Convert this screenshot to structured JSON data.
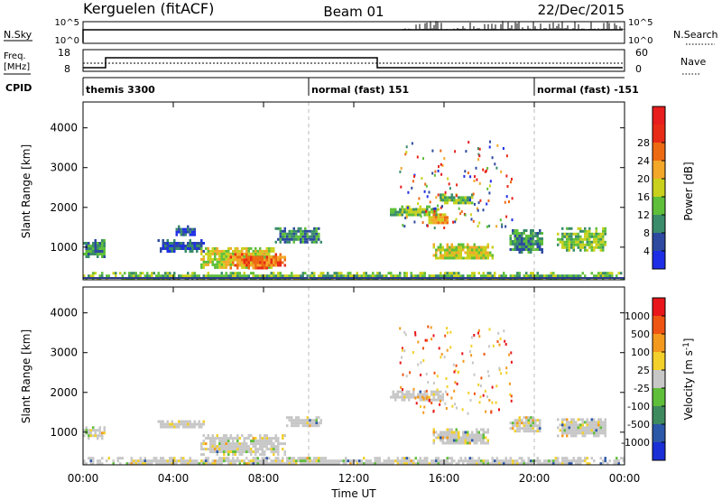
{
  "header": {
    "station": "Kerguelen (fitACF)",
    "beam": "Beam 01",
    "date": "22/Dec/2015"
  },
  "nsky_panel": {
    "left_label": "N.Sky",
    "ticks_left": [
      "10^5",
      "10^0"
    ],
    "ticks_right": [
      "10^5",
      "10^0"
    ],
    "right_label": "N.Search"
  },
  "freq_panel": {
    "left_label_1": "Freq.",
    "left_label_2": "[MHz]",
    "ticks_left": [
      "18",
      "8"
    ],
    "ticks_right": [
      "60",
      "0"
    ],
    "right_label": "Nave"
  },
  "cpid": {
    "label": "CPID",
    "segments": [
      {
        "name": "themis 3300",
        "start_hour": 0,
        "end_hour": 10
      },
      {
        "name": "normal (fast) 151",
        "start_hour": 10,
        "end_hour": 20
      },
      {
        "name": "normal (fast) -151",
        "start_hour": 20,
        "end_hour": 24
      }
    ]
  },
  "x_axis": {
    "label": "Time UT",
    "ticks": [
      "00:00",
      "04:00",
      "08:00",
      "12:00",
      "16:00",
      "20:00",
      "00:00"
    ]
  },
  "power_colorbar": {
    "label": "Power [dB]",
    "ticks": [
      "4",
      "8",
      "12",
      "16",
      "20",
      "24",
      "28"
    ],
    "colors": [
      "#1e2ee6",
      "#2d4aa0",
      "#3a8c6a",
      "#5fbf3a",
      "#c9d11c",
      "#f3a82a",
      "#ee6a12",
      "#e82b17",
      "#e81d1d"
    ]
  },
  "velocity_colorbar": {
    "label": "Velocity [m s-1]",
    "ticks": [
      "1000",
      "500",
      "100",
      "25",
      "-25",
      "-100",
      "-500",
      "-1000"
    ],
    "colors": [
      "#1a2fd6",
      "#2c58a8",
      "#3f8a5f",
      "#5fbf3a",
      "#c7c7c7",
      "#f3d02a",
      "#f39a1e",
      "#ee5512",
      "#e8161a"
    ]
  },
  "chart_data": [
    {
      "type": "heatmap",
      "title": "",
      "xlabel": "Time UT",
      "ylabel": "Slant Range [km]",
      "xlim": [
        0,
        24
      ],
      "ylim": [
        180,
        4650
      ],
      "y_ticks": [
        1000,
        2000,
        3000,
        4000
      ],
      "colorbar": "Power [dB]",
      "regions": [
        {
          "start_hour": 0.0,
          "end_hour": 1.0,
          "range_min_km": 750,
          "range_max_km": 1200,
          "level": 2
        },
        {
          "start_hour": 3.3,
          "end_hour": 5.4,
          "range_min_km": 900,
          "range_max_km": 1200,
          "level": 1
        },
        {
          "start_hour": 4.0,
          "end_hour": 5.0,
          "range_min_km": 1300,
          "range_max_km": 1550,
          "level": 1
        },
        {
          "start_hour": 5.2,
          "end_hour": 8.5,
          "range_min_km": 500,
          "range_max_km": 1000,
          "level": 4
        },
        {
          "start_hour": 6.5,
          "end_hour": 9.0,
          "range_min_km": 500,
          "range_max_km": 850,
          "level": 6
        },
        {
          "start_hour": 8.5,
          "end_hour": 10.6,
          "range_min_km": 1100,
          "range_max_km": 1500,
          "level": 2
        },
        {
          "start_hour": 13.6,
          "end_hour": 15.8,
          "range_min_km": 1800,
          "range_max_km": 2050,
          "level": 3
        },
        {
          "start_hour": 15.3,
          "end_hour": 16.2,
          "range_min_km": 1600,
          "range_max_km": 1850,
          "level": 5
        },
        {
          "start_hour": 15.8,
          "end_hour": 17.3,
          "range_min_km": 2100,
          "range_max_km": 2350,
          "level": 3
        },
        {
          "start_hour": 15.5,
          "end_hour": 18.2,
          "range_min_km": 700,
          "range_max_km": 1100,
          "level": 4
        },
        {
          "start_hour": 18.9,
          "end_hour": 20.4,
          "range_min_km": 900,
          "range_max_km": 1450,
          "level": 2
        },
        {
          "start_hour": 21.0,
          "end_hour": 23.2,
          "range_min_km": 900,
          "range_max_km": 1500,
          "level": 3
        },
        {
          "start_hour": 0.0,
          "end_hour": 24.0,
          "range_min_km": 180,
          "range_max_km": 380,
          "level": 3
        }
      ]
    },
    {
      "type": "heatmap",
      "title": "",
      "xlabel": "Time UT",
      "ylabel": "Slant Range [km]",
      "xlim": [
        0,
        24
      ],
      "ylim": [
        180,
        4650
      ],
      "y_ticks": [
        1000,
        2000,
        3000,
        4000
      ],
      "colorbar": "Velocity [m s-1]",
      "regions": [
        {
          "start_hour": 0.0,
          "end_hour": 1.0,
          "range_min_km": 850,
          "range_max_km": 1150,
          "level": 4
        },
        {
          "start_hour": 3.3,
          "end_hour": 5.4,
          "range_min_km": 1100,
          "range_max_km": 1300,
          "level": 4
        },
        {
          "start_hour": 5.2,
          "end_hour": 9.0,
          "range_min_km": 450,
          "range_max_km": 950,
          "level": 4
        },
        {
          "start_hour": 9.0,
          "end_hour": 10.6,
          "range_min_km": 1150,
          "range_max_km": 1400,
          "level": 4
        },
        {
          "start_hour": 13.6,
          "end_hour": 16.0,
          "range_min_km": 1800,
          "range_max_km": 2050,
          "level": 4
        },
        {
          "start_hour": 15.5,
          "end_hour": 18.0,
          "range_min_km": 700,
          "range_max_km": 1100,
          "level": 4
        },
        {
          "start_hour": 18.9,
          "end_hour": 20.4,
          "range_min_km": 1000,
          "range_max_km": 1400,
          "level": 4
        },
        {
          "start_hour": 21.0,
          "end_hour": 23.2,
          "range_min_km": 900,
          "range_max_km": 1350,
          "level": 4
        },
        {
          "start_hour": 0.0,
          "end_hour": 24.0,
          "range_min_km": 180,
          "range_max_km": 380,
          "level": 3
        }
      ]
    }
  ]
}
